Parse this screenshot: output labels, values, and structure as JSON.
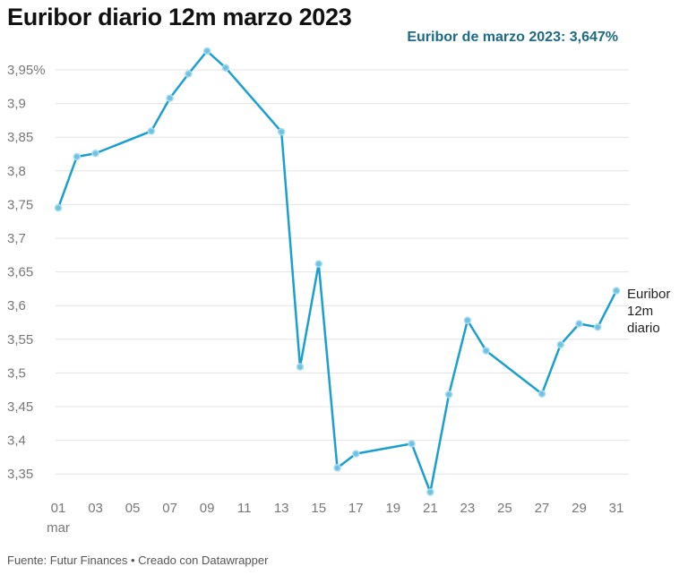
{
  "title": "Euribor diario 12m marzo 2023",
  "footer": "Fuente: Futur Finances • Creado con Datawrapper",
  "chart_data": {
    "type": "line",
    "title": "Euribor diario 12m marzo 2023",
    "annotation": "Euribor de marzo 2023: 3,647%",
    "series_label": [
      "Euribor",
      "12m",
      "diario"
    ],
    "color": "#1a9fcf",
    "annotation_color": "#1d6a85",
    "x_ticks": [
      "01",
      "03",
      "05",
      "07",
      "09",
      "11",
      "13",
      "15",
      "17",
      "19",
      "21",
      "23",
      "25",
      "27",
      "29",
      "31"
    ],
    "x_sublabel": "mar",
    "y_ticks": [
      "3,35",
      "3,4",
      "3,45",
      "3,5",
      "3,55",
      "3,6",
      "3,65",
      "3,7",
      "3,75",
      "3,8",
      "3,85",
      "3,9",
      "3,95%"
    ],
    "y_tick_values": [
      3.35,
      3.4,
      3.45,
      3.5,
      3.55,
      3.6,
      3.65,
      3.7,
      3.75,
      3.8,
      3.85,
      3.9,
      3.95
    ],
    "ylim": [
      3.32,
      3.98
    ],
    "xlim": [
      1,
      31
    ],
    "grid": true,
    "x": [
      1,
      2,
      3,
      6,
      7,
      8,
      9,
      10,
      13,
      14,
      15,
      16,
      17,
      20,
      21,
      22,
      23,
      24,
      27,
      28,
      29,
      30,
      31
    ],
    "y": [
      3.745,
      3.821,
      3.826,
      3.859,
      3.908,
      3.944,
      3.978,
      3.953,
      3.858,
      3.509,
      3.662,
      3.359,
      3.38,
      3.395,
      3.323,
      3.468,
      3.578,
      3.533,
      3.469,
      3.542,
      3.573,
      3.568,
      3.622
    ]
  }
}
